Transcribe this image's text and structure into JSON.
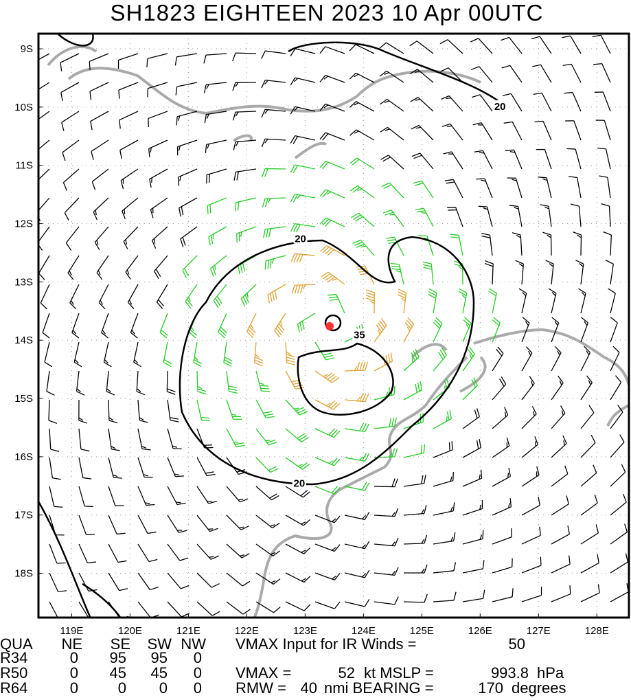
{
  "header": {
    "title": "SH1823   EIGHTEEN 2023 10 Apr 00UTC"
  },
  "map": {
    "type": "map",
    "xlim": [
      118.43,
      128.55
    ],
    "ylim": [
      -18.76,
      -8.74
    ],
    "xticks": [
      {
        "value": 119,
        "label": "119E"
      },
      {
        "value": 120,
        "label": "120E"
      },
      {
        "value": 121,
        "label": "121E"
      },
      {
        "value": 122,
        "label": "122E"
      },
      {
        "value": 123,
        "label": "123E"
      },
      {
        "value": 124,
        "label": "124E"
      },
      {
        "value": 125,
        "label": "125E"
      },
      {
        "value": 126,
        "label": "126E"
      },
      {
        "value": 127,
        "label": "127E"
      },
      {
        "value": 128,
        "label": "128E"
      }
    ],
    "yticks": [
      {
        "value": -9,
        "label": "9S"
      },
      {
        "value": -10,
        "label": "10S"
      },
      {
        "value": -11,
        "label": "11S"
      },
      {
        "value": -12,
        "label": "12S"
      },
      {
        "value": -13,
        "label": "13S"
      },
      {
        "value": -14,
        "label": "14S"
      },
      {
        "value": -15,
        "label": "15S"
      },
      {
        "value": -16,
        "label": "16S"
      },
      {
        "value": -17,
        "label": "17S"
      },
      {
        "value": -18,
        "label": "18S"
      }
    ],
    "grid": true,
    "contour_labels": [
      {
        "label": "20",
        "lon": 126.34,
        "lat": -10.0
      },
      {
        "label": "20",
        "lon": 122.92,
        "lat": -12.27
      },
      {
        "label": "35",
        "lon": 123.93,
        "lat": -13.92
      },
      {
        "label": "20",
        "lon": 122.9,
        "lat": -16.47
      }
    ],
    "storm_center": {
      "lon": 123.42,
      "lat": -13.76,
      "color": "#ff3333"
    }
  },
  "table": {
    "header": [
      "QUA",
      "NE",
      "SE",
      "SW",
      "NW"
    ],
    "rows": [
      [
        "R34",
        0,
        95,
        95,
        0
      ],
      [
        "R50",
        0,
        45,
        45,
        0
      ],
      [
        "R64",
        0,
        0,
        0,
        0
      ]
    ]
  },
  "info": {
    "vmax_input_label": "VMAX Input for IR Winds =",
    "vmax_input": 50,
    "vmax_label": "VMAX =",
    "vmax": 52,
    "mslp_label": "kt MSLP =",
    "mslp": 993.8,
    "mslp_unit": "hPa",
    "rmw_label": "RMW =",
    "rmw": 40,
    "bearing_label": "nmi BEARING =",
    "bearing": 170,
    "bearing_unit": "degrees"
  }
}
